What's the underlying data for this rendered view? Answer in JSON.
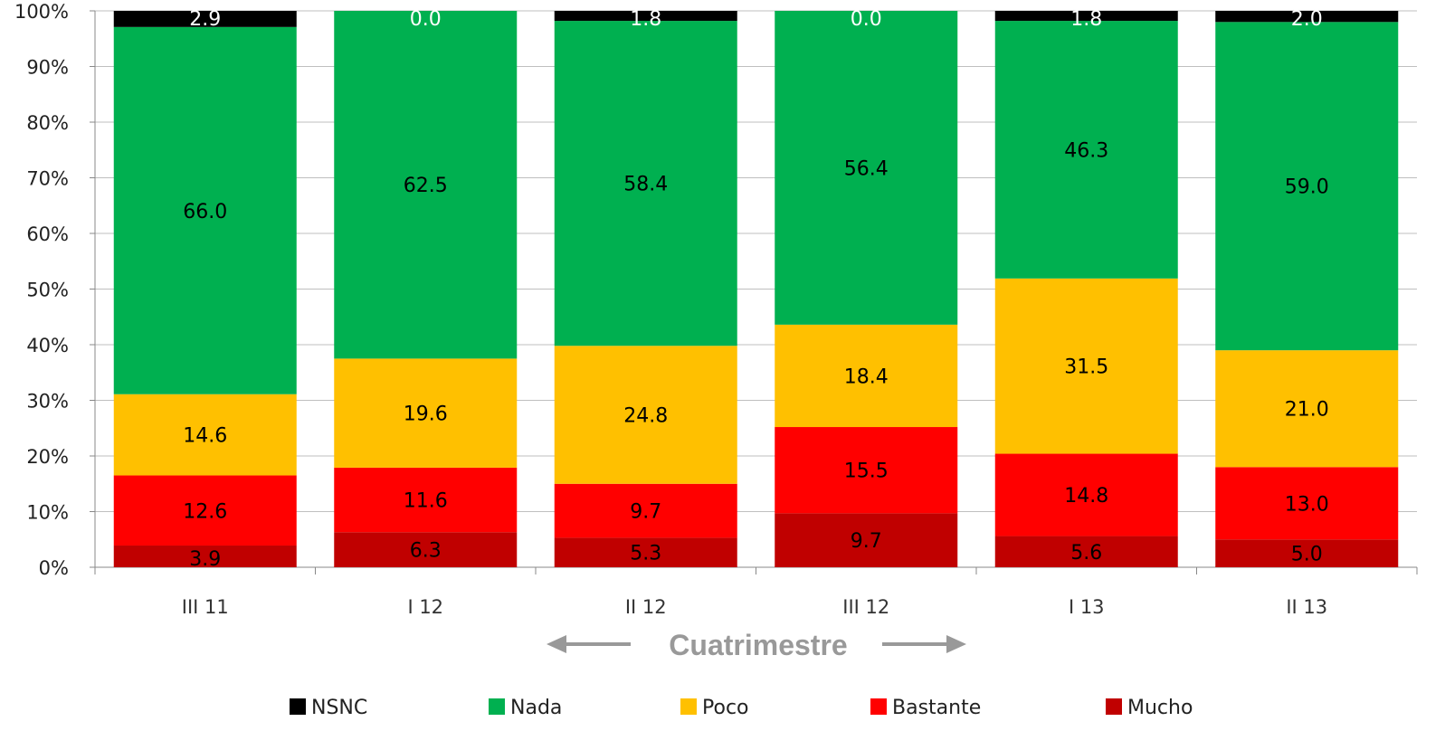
{
  "chart_data": {
    "type": "bar",
    "stacked": true,
    "percent": true,
    "categories": [
      "III 11",
      "I 12",
      "II 12",
      "III 12",
      "I 13",
      "II 13"
    ],
    "series": [
      {
        "name": "Mucho",
        "color": "#C00000",
        "values": [
          3.9,
          6.3,
          5.3,
          9.7,
          5.6,
          5.0
        ]
      },
      {
        "name": "Bastante",
        "color": "#FF0000",
        "values": [
          12.6,
          11.6,
          9.7,
          15.5,
          14.8,
          13.0
        ]
      },
      {
        "name": "Poco",
        "color": "#FFC000",
        "values": [
          14.6,
          19.6,
          24.8,
          18.4,
          31.5,
          21.0
        ]
      },
      {
        "name": "Nada",
        "color": "#00B050",
        "values": [
          66.0,
          62.5,
          58.4,
          56.4,
          46.3,
          59.0
        ]
      },
      {
        "name": "NSNC",
        "color": "#000000",
        "values": [
          2.9,
          0.0,
          1.8,
          0.0,
          1.8,
          2.0
        ]
      }
    ],
    "data_labels": {
      "Mucho": [
        "3.9",
        "6.3",
        "5.3",
        "9.7",
        "5.6",
        "5.0"
      ],
      "Bastante": [
        "12.6",
        "11.6",
        "9.7",
        "15.5",
        "14.8",
        "13.0"
      ],
      "Poco": [
        "14.6",
        "19.6",
        "24.8",
        "18.4",
        "31.5",
        "21.0"
      ],
      "Nada": [
        "66.0",
        "62.5",
        "58.4",
        "56.4",
        "46.3",
        "59.0"
      ],
      "NSNC": [
        "2.9",
        "0.0",
        "1.8",
        "0.0",
        "1.8",
        "2.0"
      ]
    },
    "yticks": [
      "0%",
      "10%",
      "20%",
      "30%",
      "40%",
      "50%",
      "60%",
      "70%",
      "80%",
      "90%",
      "100%"
    ],
    "ylim": [
      0,
      100
    ],
    "xlabel": "Cuatrimestre",
    "ylabel": "",
    "title": "",
    "legend_order": [
      "NSNC",
      "Nada",
      "Poco",
      "Bastante",
      "Mucho"
    ],
    "legend_position": "bottom",
    "grid": true
  }
}
